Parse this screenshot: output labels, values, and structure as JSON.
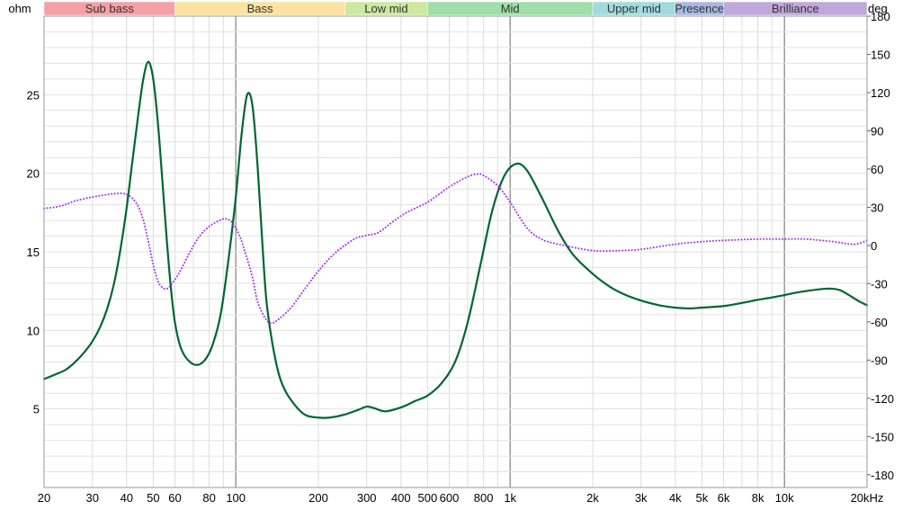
{
  "chart_data": {
    "type": "line",
    "x_scale": "log",
    "xlim": [
      20,
      20000
    ],
    "x_ticks": [
      {
        "value": 20,
        "label": "20"
      },
      {
        "value": 30,
        "label": "30"
      },
      {
        "value": 40,
        "label": "40"
      },
      {
        "value": 50,
        "label": "50"
      },
      {
        "value": 60,
        "label": "60"
      },
      {
        "value": 80,
        "label": "80"
      },
      {
        "value": 100,
        "label": "100"
      },
      {
        "value": 200,
        "label": "200"
      },
      {
        "value": 300,
        "label": "300"
      },
      {
        "value": 400,
        "label": "400"
      },
      {
        "value": 500,
        "label": "500"
      },
      {
        "value": 600,
        "label": "600"
      },
      {
        "value": 800,
        "label": "800"
      },
      {
        "value": 1000,
        "label": "1k"
      },
      {
        "value": 2000,
        "label": "2k"
      },
      {
        "value": 3000,
        "label": "3k"
      },
      {
        "value": 4000,
        "label": "4k"
      },
      {
        "value": 5000,
        "label": "5k"
      },
      {
        "value": 6000,
        "label": "6k"
      },
      {
        "value": 8000,
        "label": "8k"
      },
      {
        "value": 10000,
        "label": "10k"
      },
      {
        "value": 20000,
        "label": "20kHz"
      }
    ],
    "y_left": {
      "unit": "ohm",
      "ylim": [
        0,
        30
      ],
      "ticks": [
        5,
        10,
        15,
        20,
        25
      ]
    },
    "y_right": {
      "unit": "deg",
      "ylim": [
        -190,
        180
      ],
      "ticks": [
        180,
        150,
        120,
        90,
        60,
        30,
        0,
        -30,
        -60,
        -90,
        -120,
        -150,
        -180
      ]
    },
    "grid": true,
    "bands": [
      {
        "label": "Sub bass",
        "from": 20,
        "to": 60,
        "color": "#f4a0a6"
      },
      {
        "label": "Bass",
        "from": 60,
        "to": 250,
        "color": "#fbe3a0"
      },
      {
        "label": "Low mid",
        "from": 250,
        "to": 500,
        "color": "#cde9a0"
      },
      {
        "label": "Mid",
        "from": 500,
        "to": 2000,
        "color": "#9fdfa9"
      },
      {
        "label": "Upper mid",
        "from": 2000,
        "to": 4000,
        "color": "#a0dcdc"
      },
      {
        "label": "Presence",
        "from": 4000,
        "to": 6000,
        "color": "#a8b8e0"
      },
      {
        "label": "Brilliance",
        "from": 6000,
        "to": 20000,
        "color": "#c0a8d8"
      }
    ],
    "series": [
      {
        "axis": "left",
        "color": "#006633",
        "style": "solid",
        "points": [
          [
            20,
            6.9
          ],
          [
            22,
            7.2
          ],
          [
            24,
            7.5
          ],
          [
            26,
            8.0
          ],
          [
            28,
            8.6
          ],
          [
            30,
            9.3
          ],
          [
            32,
            10.2
          ],
          [
            34,
            11.4
          ],
          [
            36,
            13.0
          ],
          [
            38,
            15.2
          ],
          [
            40,
            17.8
          ],
          [
            42,
            20.8
          ],
          [
            44,
            23.6
          ],
          [
            46,
            26.0
          ],
          [
            48,
            27.1
          ],
          [
            50,
            26.0
          ],
          [
            52,
            23.2
          ],
          [
            54,
            19.5
          ],
          [
            56,
            15.8
          ],
          [
            58,
            12.7
          ],
          [
            60,
            10.5
          ],
          [
            63,
            8.9
          ],
          [
            67,
            8.1
          ],
          [
            72,
            7.8
          ],
          [
            77,
            8.1
          ],
          [
            82,
            9.0
          ],
          [
            88,
            11.0
          ],
          [
            94,
            14.5
          ],
          [
            100,
            18.5
          ],
          [
            105,
            22.5
          ],
          [
            110,
            25.0
          ],
          [
            115,
            24.3
          ],
          [
            120,
            20.5
          ],
          [
            125,
            15.5
          ],
          [
            130,
            11.5
          ],
          [
            140,
            8.0
          ],
          [
            150,
            6.3
          ],
          [
            165,
            5.2
          ],
          [
            180,
            4.6
          ],
          [
            200,
            4.45
          ],
          [
            220,
            4.45
          ],
          [
            250,
            4.65
          ],
          [
            280,
            4.95
          ],
          [
            300,
            5.15
          ],
          [
            320,
            5.05
          ],
          [
            350,
            4.85
          ],
          [
            400,
            5.1
          ],
          [
            450,
            5.5
          ],
          [
            500,
            5.85
          ],
          [
            560,
            6.6
          ],
          [
            630,
            8.0
          ],
          [
            700,
            10.5
          ],
          [
            780,
            14.2
          ],
          [
            860,
            17.6
          ],
          [
            950,
            19.8
          ],
          [
            1050,
            20.6
          ],
          [
            1150,
            20.2
          ],
          [
            1300,
            18.5
          ],
          [
            1500,
            16.3
          ],
          [
            1700,
            14.8
          ],
          [
            2000,
            13.6
          ],
          [
            2300,
            12.8
          ],
          [
            2600,
            12.3
          ],
          [
            3000,
            11.9
          ],
          [
            3500,
            11.6
          ],
          [
            4000,
            11.45
          ],
          [
            4500,
            11.4
          ],
          [
            5000,
            11.45
          ],
          [
            6000,
            11.55
          ],
          [
            7000,
            11.75
          ],
          [
            8000,
            11.95
          ],
          [
            9000,
            12.1
          ],
          [
            10000,
            12.25
          ],
          [
            11000,
            12.4
          ],
          [
            12500,
            12.55
          ],
          [
            14000,
            12.65
          ],
          [
            15000,
            12.65
          ],
          [
            16000,
            12.55
          ],
          [
            17000,
            12.3
          ],
          [
            18500,
            11.9
          ],
          [
            20000,
            11.6
          ]
        ]
      },
      {
        "axis": "right",
        "color": "#aa33ee",
        "style": "dotted",
        "points": [
          [
            20,
            29
          ],
          [
            23,
            31
          ],
          [
            26,
            35
          ],
          [
            30,
            38
          ],
          [
            34,
            40
          ],
          [
            38,
            41
          ],
          [
            40,
            40
          ],
          [
            42,
            37
          ],
          [
            44,
            31
          ],
          [
            46,
            20
          ],
          [
            48,
            3
          ],
          [
            50,
            -15
          ],
          [
            52,
            -28
          ],
          [
            54,
            -33
          ],
          [
            56,
            -34
          ],
          [
            58,
            -31
          ],
          [
            62,
            -22
          ],
          [
            67,
            -8
          ],
          [
            73,
            6
          ],
          [
            80,
            15
          ],
          [
            88,
            20
          ],
          [
            92,
            21
          ],
          [
            97,
            18
          ],
          [
            103,
            8
          ],
          [
            108,
            -5
          ],
          [
            115,
            -25
          ],
          [
            120,
            -44
          ],
          [
            128,
            -57
          ],
          [
            135,
            -61
          ],
          [
            145,
            -57
          ],
          [
            160,
            -48
          ],
          [
            180,
            -33
          ],
          [
            200,
            -20
          ],
          [
            230,
            -6
          ],
          [
            270,
            5
          ],
          [
            300,
            8
          ],
          [
            330,
            10
          ],
          [
            370,
            18
          ],
          [
            420,
            26
          ],
          [
            500,
            34
          ],
          [
            600,
            46
          ],
          [
            700,
            54
          ],
          [
            760,
            56
          ],
          [
            800,
            55
          ],
          [
            900,
            47
          ],
          [
            1000,
            34
          ],
          [
            1150,
            14
          ],
          [
            1300,
            5
          ],
          [
            1500,
            1
          ],
          [
            2000,
            -4
          ],
          [
            2500,
            -4
          ],
          [
            3000,
            -3
          ],
          [
            4000,
            1
          ],
          [
            5000,
            3
          ],
          [
            6000,
            4
          ],
          [
            8000,
            5
          ],
          [
            10000,
            5
          ],
          [
            12000,
            5
          ],
          [
            15000,
            3
          ],
          [
            18000,
            1
          ],
          [
            20000,
            4
          ]
        ]
      }
    ]
  }
}
